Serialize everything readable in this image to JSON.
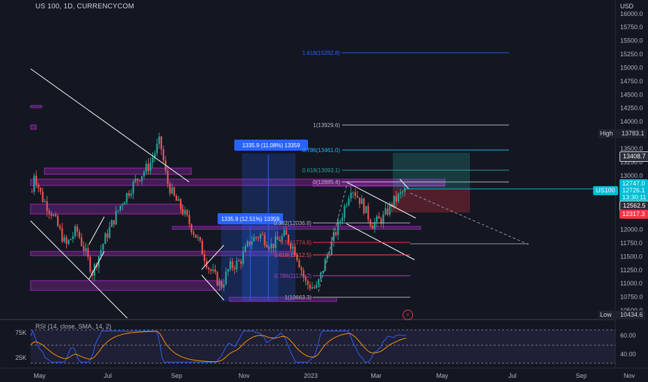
{
  "header": {
    "symbol_line": "US 100, 1D, CURRENCYCOM",
    "currency": "USD"
  },
  "price_axis": {
    "ticks": [
      "16000.0",
      "15750.0",
      "15500.0",
      "15250.0",
      "15000.0",
      "14750.0",
      "14500.0",
      "14250.0",
      "14000.0",
      "13750.0",
      "13500.0",
      "13250.0",
      "13000.0",
      "12750.0",
      "12500.0",
      "12250.0",
      "12000.0",
      "11750.0",
      "11500.0",
      "11250.0",
      "11000.0",
      "10750.0",
      "10500.0"
    ]
  },
  "rsi_axis": {
    "ticks": [
      "60.00",
      "40.00"
    ],
    "left_ticks": [
      "75K",
      "25K"
    ]
  },
  "time_axis": {
    "labels": [
      "May",
      "Jul",
      "Sep",
      "Nov",
      "2023",
      "Mar",
      "May",
      "Jul",
      "Sep",
      "Nov"
    ]
  },
  "high_low": {
    "high_label": "High",
    "high_value": "13783.1",
    "low_label": "Low",
    "low_value": "10434.6"
  },
  "price_flags": {
    "target": "13408.7",
    "teal": "12747.0",
    "us100_label": "US100",
    "last": "12726.1",
    "countdown": "13:30:11",
    "entry": "12562.5",
    "stop": "12317.3"
  },
  "fib_upper": [
    {
      "label": "1.618(15282.8)",
      "color": "#2962ff"
    },
    {
      "label": "1(13929.6)",
      "color": "#b2b5be"
    },
    {
      "label": "0.786(13461.0)",
      "color": "#29b6f6"
    },
    {
      "label": "0.618(13093.1)",
      "color": "#26a69a"
    },
    {
      "label": "0(12885.4)",
      "color": "#b2b5be"
    }
  ],
  "fib_lower": [
    {
      "label": "0.382(12036.8)",
      "color": "#b2b5be"
    },
    {
      "label": "0.5(11774.6)",
      "color": "#f23645"
    },
    {
      "label": "0.618(11512.5)",
      "color": "#ff5252"
    },
    {
      "label": "0.786(11139.2)",
      "color": "#ab47bc"
    },
    {
      "label": "1(10663.3)",
      "color": "#b2b5be"
    }
  ],
  "measure_labels": [
    "1335.9 (11.08%) 13359",
    "1335.9 (12.51%) 13359"
  ],
  "rsi": {
    "title": "RSI (14, close, SMA, 14, 2)"
  },
  "colors": {
    "bg": "#131722",
    "up": "#26a69a",
    "down": "#ef5350",
    "zone": "#9c27b0",
    "accent": "#2962ff",
    "rsi": "#2962ff",
    "rsi_ma": "#ff9800"
  }
}
